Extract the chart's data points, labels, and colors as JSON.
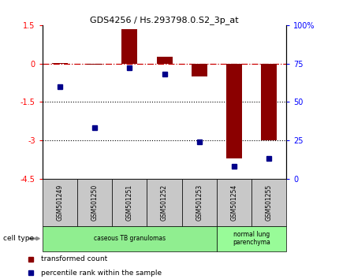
{
  "title": "GDS4256 / Hs.293798.0.S2_3p_at",
  "samples": [
    "GSM501249",
    "GSM501250",
    "GSM501251",
    "GSM501252",
    "GSM501253",
    "GSM501254",
    "GSM501255"
  ],
  "red_bars": [
    0.02,
    -0.05,
    1.35,
    0.25,
    -0.5,
    -3.7,
    -3.0
  ],
  "blue_dots": [
    60,
    33,
    72,
    68,
    24,
    8,
    13
  ],
  "left_ylim": [
    -4.5,
    1.5
  ],
  "right_ylim": [
    0,
    100
  ],
  "left_yticks": [
    1.5,
    0,
    -1.5,
    -3,
    -4.5
  ],
  "left_ytick_labels": [
    "1.5",
    "0",
    "-1.5",
    "-3",
    "-4.5"
  ],
  "right_yticks": [
    100,
    75,
    50,
    25,
    0
  ],
  "right_ytick_labels": [
    "100%",
    "75",
    "50",
    "25",
    "0"
  ],
  "dotted_lines": [
    -1.5,
    -3.0
  ],
  "zero_line": 0.0,
  "bar_color": "#8B0000",
  "dot_color": "#00008B",
  "groups": [
    {
      "label": "caseous TB granulomas",
      "samples": [
        0,
        1,
        2,
        3,
        4
      ],
      "color": "#90EE90"
    },
    {
      "label": "normal lung\nparenchyma",
      "samples": [
        5,
        6
      ],
      "color": "#98FB98"
    }
  ],
  "cell_type_label": "cell type",
  "legend_red": "transformed count",
  "legend_blue": "percentile rank within the sample",
  "plot_bg": "#FFFFFF",
  "tick_bg": "#C8C8C8",
  "group_border": "#000000"
}
